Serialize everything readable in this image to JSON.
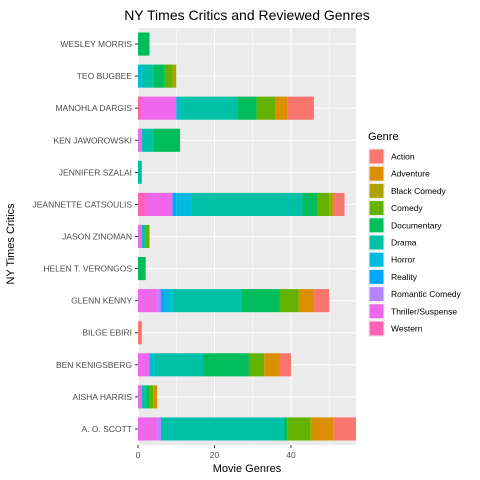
{
  "chart_data": {
    "type": "bar",
    "orientation": "horizontal",
    "stacked": true,
    "title": "NY Times Critics and Reviewed Genres",
    "xlabel": "Movie Genres",
    "ylabel": "NY Times Critics",
    "xlim": [
      0,
      57
    ],
    "xticks": [
      0,
      20,
      40
    ],
    "grid": true,
    "legend_title": "Genre",
    "legend_position": "right",
    "categories": [
      "WESLEY MORRIS",
      "TEO BUGBEE",
      "MANOHLA DARGIS",
      "KEN JAWOROWSKI",
      "JENNIFER SZALAI",
      "JEANNETTE CATSOULIS",
      "JASON ZINOMAN",
      "HELEN T. VERONGOS",
      "GLENN KENNY",
      "BILGE EBIRI",
      "BEN KENIGSBERG",
      "AISHA HARRIS",
      "A. O. SCOTT"
    ],
    "stack_order": [
      "Western",
      "Thriller/Suspense",
      "Romantic Comedy",
      "Reality",
      "Horror",
      "Drama",
      "Documentary",
      "Comedy",
      "Black Comedy",
      "Adventure",
      "Action"
    ],
    "series": [
      {
        "name": "Action",
        "color": "#F8766D",
        "values": [
          0,
          0,
          7,
          0,
          0,
          3,
          0,
          0,
          4,
          1,
          3,
          0,
          6
        ]
      },
      {
        "name": "Adventure",
        "color": "#DB8E00",
        "values": [
          0,
          0,
          3,
          0,
          0,
          0,
          0,
          0,
          4,
          0,
          4,
          1,
          5
        ]
      },
      {
        "name": "Black Comedy",
        "color": "#AEA200",
        "values": [
          0,
          1,
          0,
          0,
          0,
          1,
          0,
          0,
          0,
          0,
          0,
          0,
          1
        ]
      },
      {
        "name": "Comedy",
        "color": "#64B200",
        "values": [
          0,
          2,
          5,
          0,
          0,
          3,
          1,
          0,
          5,
          0,
          4,
          1,
          6
        ]
      },
      {
        "name": "Documentary",
        "color": "#00BD5C",
        "values": [
          3,
          3,
          5,
          7,
          0,
          4,
          0,
          2,
          10,
          0,
          12,
          1,
          1
        ]
      },
      {
        "name": "Drama",
        "color": "#00C1A7",
        "values": [
          0,
          3,
          15,
          3,
          1,
          29,
          1,
          0,
          18,
          0,
          13,
          1,
          32
        ]
      },
      {
        "name": "Horror",
        "color": "#00BADE",
        "values": [
          0,
          1,
          1,
          0,
          0,
          4,
          0,
          0,
          2,
          0,
          1,
          0,
          0
        ]
      },
      {
        "name": "Reality",
        "color": "#00A6FF",
        "values": [
          0,
          0,
          0,
          0,
          0,
          1,
          0,
          0,
          1,
          0,
          0,
          0,
          0
        ]
      },
      {
        "name": "Romantic Comedy",
        "color": "#B385FF",
        "values": [
          0,
          0,
          0,
          0,
          0,
          0,
          0,
          0,
          1,
          0,
          0,
          0,
          1
        ]
      },
      {
        "name": "Thriller/Suspense",
        "color": "#EF67EB",
        "values": [
          0,
          0,
          9,
          1,
          0,
          7,
          1,
          0,
          5,
          0,
          3,
          1,
          5
        ]
      },
      {
        "name": "Western",
        "color": "#FF63B6",
        "values": [
          0,
          0,
          1,
          0,
          0,
          2,
          0,
          0,
          0,
          0,
          0,
          0,
          0
        ]
      }
    ]
  }
}
